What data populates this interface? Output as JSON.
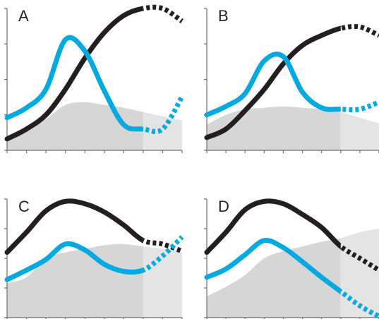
{
  "figure": {
    "colors": {
      "black_curve": "#231f20",
      "blue_curve": "#00a9df",
      "shade_observed": "#d6d6d6",
      "shade_projected": "#e4e4e4",
      "projection_bg": "#e9e9e9",
      "axis": "#6d6e71"
    }
  },
  "chart_data": [
    {
      "panel": "A",
      "type": "line",
      "label": "A",
      "x": [
        0,
        1,
        2,
        3,
        4,
        5,
        6,
        7,
        8,
        9
      ],
      "xlim": [
        0,
        9
      ],
      "ylim": [
        0,
        10
      ],
      "projection_from_x": 7,
      "grid": false,
      "area": [
        1.0,
        1.3,
        2.2,
        3.2,
        3.4,
        3.2,
        3.0,
        2.7,
        2.4,
        2.1
      ],
      "series": [
        {
          "color": "black",
          "values": [
            0.8,
            1.5,
            2.5,
            4.3,
            6.5,
            8.3,
            9.5,
            10.0,
            10.0,
            9.1
          ]
        },
        {
          "color": "blue",
          "values": [
            2.3,
            3.0,
            4.3,
            7.8,
            7.0,
            4.2,
            1.8,
            1.5,
            1.5,
            3.8
          ]
        }
      ]
    },
    {
      "panel": "B",
      "type": "line",
      "label": "B",
      "x": [
        0,
        1,
        2,
        3,
        4,
        5,
        6,
        7,
        8,
        9
      ],
      "xlim": [
        0,
        9
      ],
      "ylim": [
        0,
        10
      ],
      "projection_from_x": 7,
      "grid": false,
      "area": [
        1.8,
        2.5,
        2.9,
        3.0,
        3.1,
        3.0,
        2.9,
        2.7,
        2.3,
        1.9
      ],
      "series": [
        {
          "color": "black",
          "values": [
            0.9,
            1.5,
            2.8,
            4.3,
            6.1,
            7.4,
            8.1,
            8.6,
            8.7,
            8.1
          ]
        },
        {
          "color": "blue",
          "values": [
            2.5,
            3.1,
            4.0,
            6.3,
            6.6,
            4.1,
            3.0,
            2.9,
            2.9,
            3.4
          ]
        }
      ]
    },
    {
      "panel": "C",
      "type": "line",
      "label": "C",
      "x": [
        0,
        1,
        2,
        3,
        4,
        5,
        6,
        7,
        8,
        9
      ],
      "xlim": [
        0,
        9
      ],
      "ylim": [
        0,
        10
      ],
      "projection_from_x": 7,
      "grid": false,
      "area": [
        2.9,
        3.4,
        5.0,
        5.5,
        5.8,
        6.1,
        6.2,
        6.0,
        5.8,
        5.5
      ],
      "series": [
        {
          "color": "black",
          "values": [
            5.5,
            7.2,
            9.0,
            9.8,
            9.6,
            8.9,
            7.8,
            6.5,
            6.2,
            5.6
          ]
        },
        {
          "color": "blue",
          "values": [
            3.2,
            4.0,
            4.9,
            6.2,
            5.7,
            4.5,
            3.9,
            4.0,
            5.2,
            6.8
          ]
        }
      ]
    },
    {
      "panel": "D",
      "type": "line",
      "label": "D",
      "x": [
        0,
        1,
        2,
        3,
        4,
        5,
        6,
        7,
        8,
        9
      ],
      "xlim": [
        0,
        9
      ],
      "ylim": [
        0,
        10
      ],
      "projection_from_x": 7,
      "grid": false,
      "area": [
        1.8,
        2.6,
        3.6,
        5.0,
        5.6,
        6.0,
        6.4,
        6.7,
        7.2,
        7.5
      ],
      "series": [
        {
          "color": "black",
          "values": [
            5.5,
            7.2,
            9.1,
            9.8,
            9.6,
            8.7,
            7.6,
            6.0,
            5.0,
            4.0
          ]
        },
        {
          "color": "blue",
          "values": [
            3.4,
            4.1,
            5.3,
            6.5,
            5.9,
            4.7,
            3.4,
            2.2,
            1.0,
            0.1
          ]
        }
      ]
    }
  ]
}
